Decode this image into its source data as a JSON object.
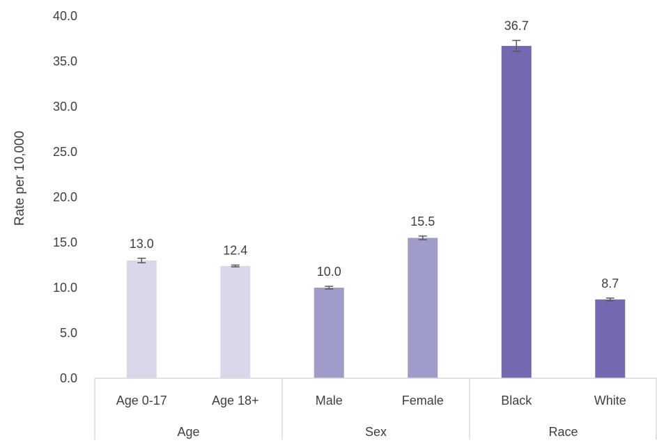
{
  "chart_data": {
    "type": "bar",
    "title": "",
    "xlabel": "",
    "ylabel": "Rate per 10,000",
    "ylim": [
      0,
      40
    ],
    "y_ticks": [
      "0.0",
      "5.0",
      "10.0",
      "15.0",
      "20.0",
      "25.0",
      "30.0",
      "35.0",
      "40.0"
    ],
    "grid": false,
    "legend": "none",
    "groups": [
      {
        "name": "Age",
        "color": "#d9d8ea",
        "categories": [
          "Age 0-17",
          "Age 18+"
        ]
      },
      {
        "name": "Sex",
        "color": "#a09cc9",
        "categories": [
          "Male",
          "Female"
        ]
      },
      {
        "name": "Race",
        "color": "#7369b0",
        "categories": [
          "Black",
          "White"
        ]
      }
    ],
    "categories": [
      "Age 0-17",
      "Age 18+",
      "Male",
      "Female",
      "Black",
      "White"
    ],
    "values": [
      13.0,
      12.4,
      10.0,
      15.5,
      36.7,
      8.7
    ],
    "value_labels": [
      "13.0",
      "12.4",
      "10.0",
      "15.5",
      "36.7",
      "8.7"
    ],
    "error_bars": [
      [
        12.75,
        13.25
      ],
      [
        12.3,
        12.5
      ],
      [
        9.85,
        10.15
      ],
      [
        15.3,
        15.7
      ],
      [
        36.1,
        37.3
      ],
      [
        8.55,
        8.85
      ]
    ]
  }
}
